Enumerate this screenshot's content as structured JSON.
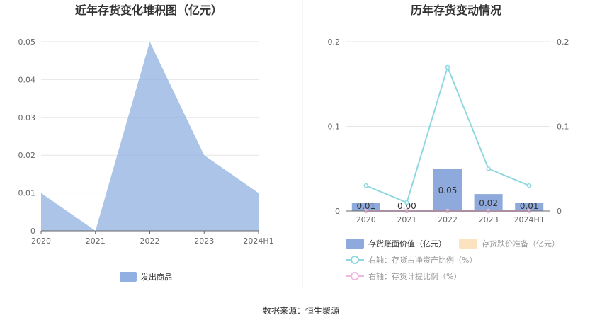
{
  "footer": "数据来源：恒生聚源",
  "chart_data": [
    {
      "type": "area",
      "title": "近年存货变化堆积图（亿元）",
      "categories": [
        "2020",
        "2021",
        "2022",
        "2023",
        "2024H1"
      ],
      "y_ticks": [
        "0",
        "0.01",
        "0.02",
        "0.03",
        "0.04",
        "0.05"
      ],
      "ylim": [
        0,
        0.05
      ],
      "grid": true,
      "legend_position": "bottom",
      "series": [
        {
          "name": "发出商品",
          "values": [
            0.01,
            0.0,
            0.05,
            0.02,
            0.01
          ],
          "color": "#8fb0e0"
        }
      ]
    },
    {
      "type": "bar",
      "title": "历年存货变动情况",
      "categories": [
        "2020",
        "2021",
        "2022",
        "2023",
        "2024H1"
      ],
      "y_ticks_left": [
        "0",
        "0.1",
        "0.2"
      ],
      "y_ticks_right": [
        "0",
        "0.1",
        "0.2"
      ],
      "ylim_left": [
        0,
        0.2
      ],
      "ylim_right": [
        0,
        0.2
      ],
      "grid": true,
      "legend_position": "bottom",
      "series": [
        {
          "name": "存货账面价值（亿元）",
          "kind": "bar",
          "axis": "left",
          "values": [
            0.01,
            0.0,
            0.05,
            0.02,
            0.01
          ],
          "labels": [
            "0.01",
            "0.00",
            "0.05",
            "0.02",
            "0.01"
          ],
          "color": "#8eaadc"
        },
        {
          "name": "存货跌价准备（亿元）",
          "kind": "bar",
          "axis": "left",
          "values": [
            0,
            0,
            0,
            0,
            0
          ],
          "color": "#fbe3c0"
        },
        {
          "name": "右轴：存货占净资产比例（%）",
          "kind": "line",
          "axis": "right",
          "values": [
            0.03,
            0.01,
            0.17,
            0.05,
            0.03
          ],
          "color": "#8fd8df"
        },
        {
          "name": "右轴：存货计提比例（%）",
          "kind": "line",
          "axis": "right",
          "values": [
            0,
            0,
            0,
            0,
            0
          ],
          "color": "#f0b8de"
        }
      ]
    }
  ]
}
